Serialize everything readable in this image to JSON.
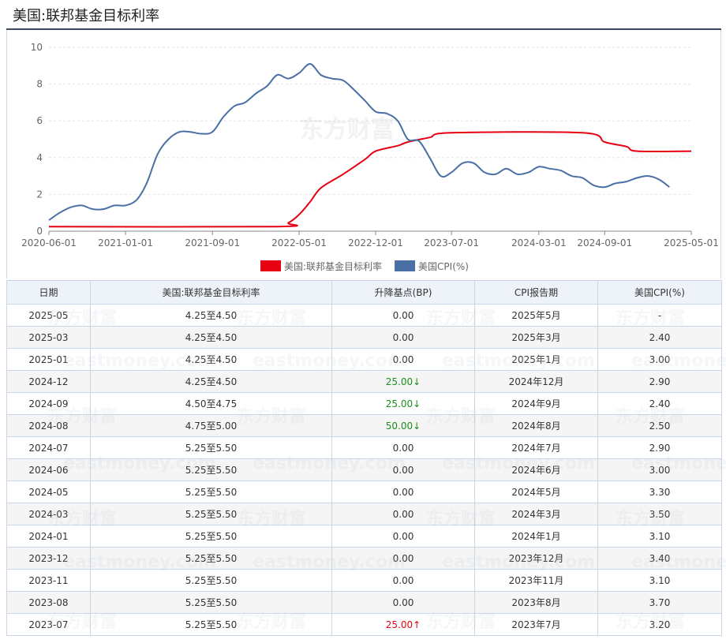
{
  "page_title": "美国:联邦基金目标利率",
  "watermark": {
    "brand": "东方财富",
    "site": "eastmoney.com"
  },
  "chart_data": {
    "type": "line",
    "x_start": "2020-06-01",
    "x_end": "2025-05-01",
    "x_ticks": [
      "2020-06-01",
      "2021-01-01",
      "2021-09-01",
      "2022-05-01",
      "2022-12-01",
      "2023-07-01",
      "2024-03-01",
      "2024-09-01",
      "2025-05-01"
    ],
    "y_ticks": [
      0,
      2,
      4,
      6,
      8,
      10
    ],
    "ylim": [
      0,
      10
    ],
    "grid": "horizontal dashed",
    "legend_placement": "bottom-center",
    "series": [
      {
        "name": "美国:联邦基金目标利率",
        "color": "#e60012",
        "points": [
          [
            "2020-06-01",
            0.25
          ],
          [
            "2022-03-01",
            0.25
          ],
          [
            "2022-04-01",
            0.45
          ],
          [
            "2022-05-01",
            0.9
          ],
          [
            "2022-06-01",
            1.6
          ],
          [
            "2022-07-01",
            2.35
          ],
          [
            "2022-09-01",
            3.1
          ],
          [
            "2022-11-01",
            3.9
          ],
          [
            "2022-12-01",
            4.35
          ],
          [
            "2023-02-01",
            4.65
          ],
          [
            "2023-03-01",
            4.85
          ],
          [
            "2023-05-01",
            5.1
          ],
          [
            "2023-07-01",
            5.35
          ],
          [
            "2024-07-01",
            5.35
          ],
          [
            "2024-09-01",
            4.85
          ],
          [
            "2024-11-01",
            4.6
          ],
          [
            "2024-12-01",
            4.35
          ],
          [
            "2025-05-01",
            4.35
          ]
        ]
      },
      {
        "name": "美国CPI(%)",
        "color": "#4a6fa5",
        "points": [
          [
            "2020-06-01",
            0.6
          ],
          [
            "2020-07-01",
            1.0
          ],
          [
            "2020-08-01",
            1.3
          ],
          [
            "2020-09-01",
            1.4
          ],
          [
            "2020-10-01",
            1.2
          ],
          [
            "2020-11-01",
            1.2
          ],
          [
            "2020-12-01",
            1.4
          ],
          [
            "2021-01-01",
            1.4
          ],
          [
            "2021-02-01",
            1.7
          ],
          [
            "2021-03-01",
            2.6
          ],
          [
            "2021-04-01",
            4.2
          ],
          [
            "2021-05-01",
            5.0
          ],
          [
            "2021-06-01",
            5.4
          ],
          [
            "2021-07-01",
            5.4
          ],
          [
            "2021-08-01",
            5.3
          ],
          [
            "2021-09-01",
            5.4
          ],
          [
            "2021-10-01",
            6.2
          ],
          [
            "2021-11-01",
            6.8
          ],
          [
            "2021-12-01",
            7.0
          ],
          [
            "2022-01-01",
            7.5
          ],
          [
            "2022-02-01",
            7.9
          ],
          [
            "2022-03-01",
            8.5
          ],
          [
            "2022-04-01",
            8.3
          ],
          [
            "2022-05-01",
            8.6
          ],
          [
            "2022-06-01",
            9.1
          ],
          [
            "2022-07-01",
            8.5
          ],
          [
            "2022-08-01",
            8.3
          ],
          [
            "2022-09-01",
            8.2
          ],
          [
            "2022-10-01",
            7.7
          ],
          [
            "2022-11-01",
            7.1
          ],
          [
            "2022-12-01",
            6.5
          ],
          [
            "2023-01-01",
            6.4
          ],
          [
            "2023-02-01",
            6.0
          ],
          [
            "2023-03-01",
            5.0
          ],
          [
            "2023-04-01",
            4.9
          ],
          [
            "2023-05-01",
            4.0
          ],
          [
            "2023-06-01",
            3.0
          ],
          [
            "2023-07-01",
            3.2
          ],
          [
            "2023-08-01",
            3.7
          ],
          [
            "2023-09-01",
            3.7
          ],
          [
            "2023-10-01",
            3.2
          ],
          [
            "2023-11-01",
            3.1
          ],
          [
            "2023-12-01",
            3.4
          ],
          [
            "2024-01-01",
            3.1
          ],
          [
            "2024-02-01",
            3.2
          ],
          [
            "2024-03-01",
            3.5
          ],
          [
            "2024-04-01",
            3.4
          ],
          [
            "2024-05-01",
            3.3
          ],
          [
            "2024-06-01",
            3.0
          ],
          [
            "2024-07-01",
            2.9
          ],
          [
            "2024-08-01",
            2.5
          ],
          [
            "2024-09-01",
            2.4
          ],
          [
            "2024-10-01",
            2.6
          ],
          [
            "2024-11-01",
            2.7
          ],
          [
            "2024-12-01",
            2.9
          ],
          [
            "2025-01-01",
            3.0
          ],
          [
            "2025-02-01",
            2.8
          ],
          [
            "2025-03-01",
            2.4
          ]
        ]
      }
    ]
  },
  "table": {
    "headers": [
      "日期",
      "美国:联邦基金目标利率",
      "升降基点(BP)",
      "CPI报告期",
      "美国CPI(%)"
    ],
    "rows": [
      {
        "date": "2025-05",
        "rate": "4.25至4.50",
        "bp": "0.00",
        "dir": "",
        "period": "2025年5月",
        "cpi": "-"
      },
      {
        "date": "2025-03",
        "rate": "4.25至4.50",
        "bp": "0.00",
        "dir": "",
        "period": "2025年3月",
        "cpi": "2.40"
      },
      {
        "date": "2025-01",
        "rate": "4.25至4.50",
        "bp": "0.00",
        "dir": "",
        "period": "2025年1月",
        "cpi": "3.00"
      },
      {
        "date": "2024-12",
        "rate": "4.25至4.50",
        "bp": "25.00↓",
        "dir": "down",
        "period": "2024年12月",
        "cpi": "2.90"
      },
      {
        "date": "2024-09",
        "rate": "4.50至4.75",
        "bp": "25.00↓",
        "dir": "down",
        "period": "2024年9月",
        "cpi": "2.40"
      },
      {
        "date": "2024-08",
        "rate": "4.75至5.00",
        "bp": "50.00↓",
        "dir": "down",
        "period": "2024年8月",
        "cpi": "2.50"
      },
      {
        "date": "2024-07",
        "rate": "5.25至5.50",
        "bp": "0.00",
        "dir": "",
        "period": "2024年7月",
        "cpi": "2.90"
      },
      {
        "date": "2024-06",
        "rate": "5.25至5.50",
        "bp": "0.00",
        "dir": "",
        "period": "2024年6月",
        "cpi": "3.00"
      },
      {
        "date": "2024-05",
        "rate": "5.25至5.50",
        "bp": "0.00",
        "dir": "",
        "period": "2024年5月",
        "cpi": "3.30"
      },
      {
        "date": "2024-03",
        "rate": "5.25至5.50",
        "bp": "0.00",
        "dir": "",
        "period": "2024年3月",
        "cpi": "3.50"
      },
      {
        "date": "2024-01",
        "rate": "5.25至5.50",
        "bp": "0.00",
        "dir": "",
        "period": "2024年1月",
        "cpi": "3.10"
      },
      {
        "date": "2023-12",
        "rate": "5.25至5.50",
        "bp": "0.00",
        "dir": "",
        "period": "2023年12月",
        "cpi": "3.40"
      },
      {
        "date": "2023-11",
        "rate": "5.25至5.50",
        "bp": "0.00",
        "dir": "",
        "period": "2023年11月",
        "cpi": "3.10"
      },
      {
        "date": "2023-08",
        "rate": "5.25至5.50",
        "bp": "0.00",
        "dir": "",
        "period": "2023年8月",
        "cpi": "3.70"
      },
      {
        "date": "2023-07",
        "rate": "5.25至5.50",
        "bp": "25.00↑",
        "dir": "up",
        "period": "2023年7月",
        "cpi": "3.20"
      }
    ]
  },
  "colors": {
    "down": "#1a8f1a",
    "up": "#e60012",
    "header_bg": "#eef3fa",
    "border": "#c8d6e8"
  }
}
